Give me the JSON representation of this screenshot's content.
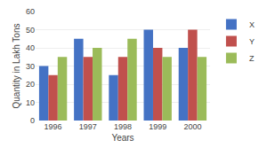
{
  "chart_data": {
    "type": "bar",
    "xlabel": "Years",
    "ylabel": "Quantity in Lakh Tons",
    "categories": [
      "1996",
      "1997",
      "1998",
      "1999",
      "2000"
    ],
    "series": [
      {
        "name": "X",
        "color": "#4472C4",
        "values": [
          30,
          45,
          25,
          50,
          40
        ]
      },
      {
        "name": "Y",
        "color": "#C0504D",
        "values": [
          25,
          35,
          35,
          40,
          50
        ]
      },
      {
        "name": "Z",
        "color": "#9BBB59",
        "values": [
          35,
          40,
          45,
          35,
          35
        ]
      }
    ],
    "ylim": [
      0,
      60
    ],
    "yticks": [
      0,
      10,
      20,
      30,
      40,
      50,
      60
    ],
    "grid": true,
    "legend": "upper right"
  }
}
